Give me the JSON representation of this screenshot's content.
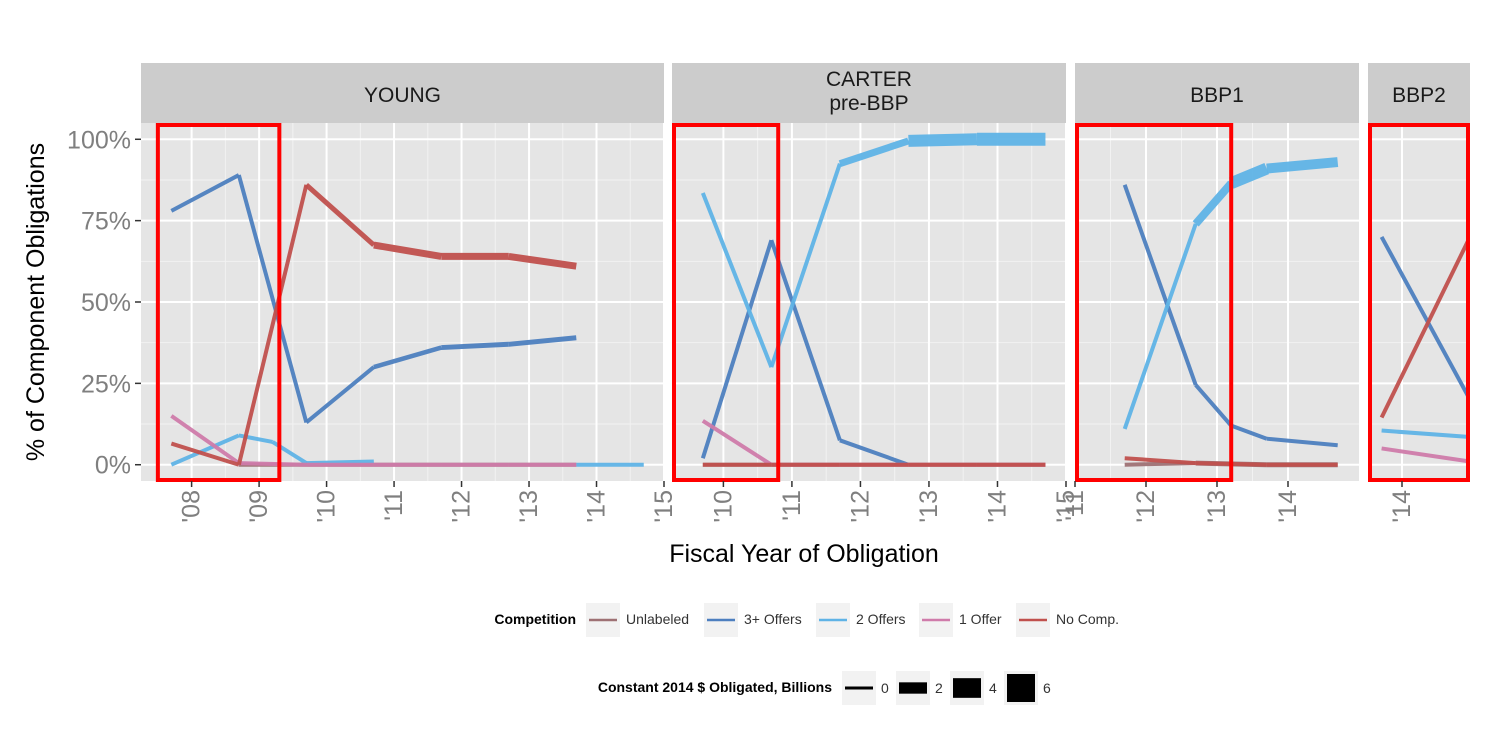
{
  "chart_data": {
    "type": "line",
    "ylabel": "% of Component Obligations",
    "xlabel": "Fiscal Year of Obligation",
    "ylim": [
      -0.05,
      1.05
    ],
    "y_ticks": [
      {
        "value": 0,
        "label": "0%"
      },
      {
        "value": 0.25,
        "label": "25%"
      },
      {
        "value": 0.5,
        "label": "50%"
      },
      {
        "value": 0.75,
        "label": "75%"
      },
      {
        "value": 1.0,
        "label": "100%"
      }
    ],
    "grid": true,
    "legend_position": "bottom",
    "colors": {
      "Unlabeled": "#9E7174",
      "3+ Offers": "#4D7FBF",
      "2 Offers": "#5FB3E6",
      "1 Offer": "#CF7BAA",
      "No Comp.": "#C0504D"
    },
    "panels": [
      {
        "id": "young",
        "strip": [
          "YOUNG"
        ],
        "xlim": [
          2007.25,
          2015.0
        ],
        "ticks": [
          {
            "v": 2008,
            "l": "'08"
          },
          {
            "v": 2009,
            "l": "'09"
          },
          {
            "v": 2010,
            "l": "'10"
          },
          {
            "v": 2011,
            "l": "'11"
          },
          {
            "v": 2012,
            "l": "'12"
          },
          {
            "v": 2013,
            "l": "'13"
          },
          {
            "v": 2014,
            "l": "'14"
          },
          {
            "v": 2015,
            "l": "'15"
          }
        ],
        "highlight_box": [
          2007.5,
          2009.3
        ],
        "series": [
          {
            "name": "Unlabeled",
            "points": [
              [
                2008.7,
                0.0
              ],
              [
                2009.7,
                0.0
              ],
              [
                2010.7,
                0.0
              ],
              [
                2011.7,
                0.0
              ],
              [
                2012.7,
                0.0
              ],
              [
                2013.7,
                0.0
              ]
            ]
          },
          {
            "name": "3+ Offers",
            "points": [
              [
                2007.7,
                0.78
              ],
              [
                2008.7,
                0.89
              ],
              [
                2009.7,
                0.13
              ],
              [
                2010.7,
                0.3
              ],
              [
                2011.7,
                0.36
              ],
              [
                2012.7,
                0.37
              ],
              [
                2013.7,
                0.39
              ]
            ],
            "widths": [
              4,
              4,
              4,
              4.5,
              5,
              5
            ]
          },
          {
            "name": "2 Offers",
            "points": [
              [
                2007.7,
                0.0
              ],
              [
                2008.7,
                0.09
              ],
              [
                2009.2,
                0.07
              ],
              [
                2009.7,
                0.005
              ],
              [
                2010.7,
                0.01
              ]
            ]
          },
          {
            "name": "2 Offers",
            "points": [
              [
                2013.7,
                0.0
              ],
              [
                2014.7,
                0.0
              ]
            ]
          },
          {
            "name": "1 Offer",
            "points": [
              [
                2007.7,
                0.15
              ],
              [
                2008.7,
                0.005
              ],
              [
                2009.7,
                0.0
              ],
              [
                2010.7,
                0.0
              ],
              [
                2011.7,
                0.0
              ],
              [
                2012.7,
                0.0
              ],
              [
                2013.7,
                0.0
              ]
            ]
          },
          {
            "name": "No Comp.",
            "points": [
              [
                2007.7,
                0.065
              ],
              [
                2008.7,
                0.0
              ],
              [
                2009.7,
                0.86
              ],
              [
                2010.7,
                0.675
              ],
              [
                2011.7,
                0.64
              ],
              [
                2012.7,
                0.64
              ],
              [
                2013.7,
                0.61
              ]
            ],
            "widths": [
              4,
              4,
              5,
              7,
              7,
              7
            ]
          }
        ]
      },
      {
        "id": "carter",
        "strip": [
          "CARTER",
          "pre-BBP"
        ],
        "xlim": [
          2009.25,
          2015.0
        ],
        "ticks": [
          {
            "v": 2010,
            "l": "'10"
          },
          {
            "v": 2011,
            "l": "'11"
          },
          {
            "v": 2012,
            "l": "'12"
          },
          {
            "v": 2013,
            "l": "'13"
          },
          {
            "v": 2014,
            "l": "'14"
          },
          {
            "v": 2015,
            "l": "'15"
          }
        ],
        "highlight_box": [
          2009.25,
          2010.8
        ],
        "series": [
          {
            "name": "Unlabeled",
            "points": [
              [
                2009.7,
                0.0
              ],
              [
                2010.7,
                0.0
              ],
              [
                2011.7,
                0.0
              ],
              [
                2012.7,
                0.0
              ],
              [
                2013.7,
                0.0
              ],
              [
                2014.7,
                0.0
              ]
            ]
          },
          {
            "name": "3+ Offers",
            "points": [
              [
                2009.7,
                0.02
              ],
              [
                2010.7,
                0.69
              ],
              [
                2011.7,
                0.075
              ],
              [
                2012.7,
                0.0
              ]
            ]
          },
          {
            "name": "2 Offers",
            "points": [
              [
                2009.7,
                0.835
              ],
              [
                2010.7,
                0.3
              ],
              [
                2011.7,
                0.925
              ],
              [
                2012.7,
                0.995
              ],
              [
                2013.7,
                1.0
              ],
              [
                2014.7,
                1.0
              ]
            ],
            "widths": [
              4,
              4,
              7,
              12,
              13
            ]
          },
          {
            "name": "1 Offer",
            "points": [
              [
                2009.7,
                0.135
              ],
              [
                2010.7,
                0.0
              ],
              [
                2011.7,
                0.0
              ],
              [
                2012.7,
                0.0
              ],
              [
                2013.7,
                0.0
              ],
              [
                2014.7,
                0.0
              ]
            ]
          },
          {
            "name": "No Comp.",
            "points": [
              [
                2009.7,
                0.0
              ],
              [
                2010.7,
                0.0
              ],
              [
                2011.7,
                0.0
              ],
              [
                2012.7,
                0.0
              ],
              [
                2013.7,
                0.0
              ],
              [
                2014.7,
                0.0
              ]
            ]
          }
        ]
      },
      {
        "id": "bbp1",
        "strip": [
          "BBP1"
        ],
        "xlim": [
          2011.0,
          2015.0
        ],
        "ticks": [
          {
            "v": 2011,
            "l": "'11"
          },
          {
            "v": 2012,
            "l": "'12"
          },
          {
            "v": 2013,
            "l": "'13"
          },
          {
            "v": 2014,
            "l": "'14"
          }
        ],
        "highlight_box": [
          2011.0,
          2013.2
        ],
        "series": [
          {
            "name": "Unlabeled",
            "points": [
              [
                2011.7,
                0.0
              ],
              [
                2012.7,
                0.005
              ],
              [
                2013.7,
                0.0
              ],
              [
                2014.7,
                0.0
              ]
            ],
            "widths": [
              4,
              5,
              5
            ]
          },
          {
            "name": "3+ Offers",
            "points": [
              [
                2011.7,
                0.86
              ],
              [
                2012.7,
                0.245
              ],
              [
                2013.2,
                0.12
              ],
              [
                2013.7,
                0.08
              ],
              [
                2014.7,
                0.06
              ]
            ]
          },
          {
            "name": "2 Offers",
            "points": [
              [
                2011.7,
                0.11
              ],
              [
                2012.7,
                0.74
              ],
              [
                2013.2,
                0.865
              ],
              [
                2013.7,
                0.91
              ],
              [
                2014.7,
                0.93
              ]
            ],
            "widths": [
              4,
              8,
              12,
              10
            ]
          },
          {
            "name": "No Comp.",
            "points": [
              [
                2011.7,
                0.02
              ],
              [
                2012.7,
                0.005
              ],
              [
                2013.7,
                0.0
              ],
              [
                2014.7,
                0.0
              ]
            ]
          }
        ]
      },
      {
        "id": "bbp2",
        "strip": [
          "BBP2"
        ],
        "xlim": [
          2013.5,
          2015.0
        ],
        "ticks": [
          {
            "v": 2014,
            "l": "'14"
          }
        ],
        "highlight_box": [
          2013.5,
          2015.0
        ],
        "series": [
          {
            "name": "3+ Offers",
            "points": [
              [
                2013.7,
                0.7
              ],
              [
                2015.0,
                0.2
              ]
            ]
          },
          {
            "name": "2 Offers",
            "points": [
              [
                2013.7,
                0.105
              ],
              [
                2015.0,
                0.085
              ]
            ]
          },
          {
            "name": "1 Offer",
            "points": [
              [
                2013.7,
                0.05
              ],
              [
                2015.0,
                0.01
              ]
            ]
          },
          {
            "name": "No Comp.",
            "points": [
              [
                2013.7,
                0.145
              ],
              [
                2015.0,
                0.7
              ]
            ]
          }
        ]
      }
    ],
    "legend_competition": {
      "title": "Competition",
      "entries": [
        "Unlabeled",
        "3+ Offers",
        "2 Offers",
        "1 Offer",
        "No Comp."
      ]
    },
    "legend_size": {
      "title": "Constant 2014 $ Obligated, Billions",
      "entries": [
        {
          "label": "0",
          "value": 0
        },
        {
          "label": "2",
          "value": 2
        },
        {
          "label": "4",
          "value": 4
        },
        {
          "label": "6",
          "value": 6
        }
      ]
    }
  }
}
